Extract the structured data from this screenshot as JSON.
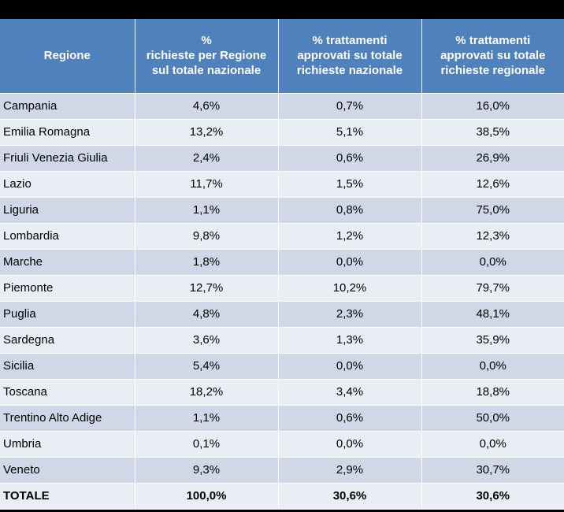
{
  "table": {
    "title": "",
    "headers": [
      [
        "Regione"
      ],
      [
        "%",
        "richieste per Regione",
        "sul totale nazionale"
      ],
      [
        "% trattamenti",
        "approvati su totale",
        "richieste nazionale"
      ],
      [
        "% trattamenti",
        "approvati su totale",
        "richieste regionale"
      ]
    ],
    "rows": [
      [
        "Campania",
        "4,6%",
        "0,7%",
        "16,0%"
      ],
      [
        "Emilia Romagna",
        "13,2%",
        "5,1%",
        "38,5%"
      ],
      [
        "Friuli Venezia Giulia",
        "2,4%",
        "0,6%",
        "26,9%"
      ],
      [
        "Lazio",
        "11,7%",
        "1,5%",
        "12,6%"
      ],
      [
        "Liguria",
        "1,1%",
        "0,8%",
        "75,0%"
      ],
      [
        "Lombardia",
        "9,8%",
        "1,2%",
        "12,3%"
      ],
      [
        "Marche",
        "1,8%",
        "0,0%",
        "0,0%"
      ],
      [
        "Piemonte",
        "12,7%",
        "10,2%",
        "79,7%"
      ],
      [
        "Puglia",
        "4,8%",
        "2,3%",
        "48,1%"
      ],
      [
        "Sardegna",
        "3,6%",
        "1,3%",
        "35,9%"
      ],
      [
        "Sicilia",
        "5,4%",
        "0,0%",
        "0,0%"
      ],
      [
        "Toscana",
        "18,2%",
        "3,4%",
        "18,8%"
      ],
      [
        "Trentino Alto Adige",
        "1,1%",
        "0,6%",
        "50,0%"
      ],
      [
        "Umbria",
        "0,1%",
        "0,0%",
        "0,0%"
      ],
      [
        "Veneto",
        "9,3%",
        "2,9%",
        "30,7%"
      ]
    ],
    "total": [
      "TOTALE",
      "100,0%",
      "30,6%",
      "30,6%"
    ]
  },
  "chart_data": {
    "type": "table",
    "columns": [
      "Regione",
      "% richieste per Regione sul totale nazionale",
      "% trattamenti approvati su totale richieste nazionale",
      "% trattamenti approvati su totale richieste regionale"
    ],
    "categories": [
      "Campania",
      "Emilia Romagna",
      "Friuli Venezia Giulia",
      "Lazio",
      "Liguria",
      "Lombardia",
      "Marche",
      "Piemonte",
      "Puglia",
      "Sardegna",
      "Sicilia",
      "Toscana",
      "Trentino Alto Adige",
      "Umbria",
      "Veneto",
      "TOTALE"
    ],
    "series": [
      {
        "name": "% richieste per Regione sul totale nazionale",
        "values": [
          4.6,
          13.2,
          2.4,
          11.7,
          1.1,
          9.8,
          1.8,
          12.7,
          4.8,
          3.6,
          5.4,
          18.2,
          1.1,
          0.1,
          9.3,
          100.0
        ]
      },
      {
        "name": "% trattamenti approvati su totale richieste nazionale",
        "values": [
          0.7,
          5.1,
          0.6,
          1.5,
          0.8,
          1.2,
          0.0,
          10.2,
          2.3,
          1.3,
          0.0,
          3.4,
          0.6,
          0.0,
          2.9,
          30.6
        ]
      },
      {
        "name": "% trattamenti approvati su totale richieste regionale",
        "values": [
          16.0,
          38.5,
          26.9,
          12.6,
          75.0,
          12.3,
          0.0,
          79.7,
          48.1,
          35.9,
          0.0,
          18.8,
          50.0,
          0.0,
          30.7,
          30.6
        ]
      }
    ]
  }
}
